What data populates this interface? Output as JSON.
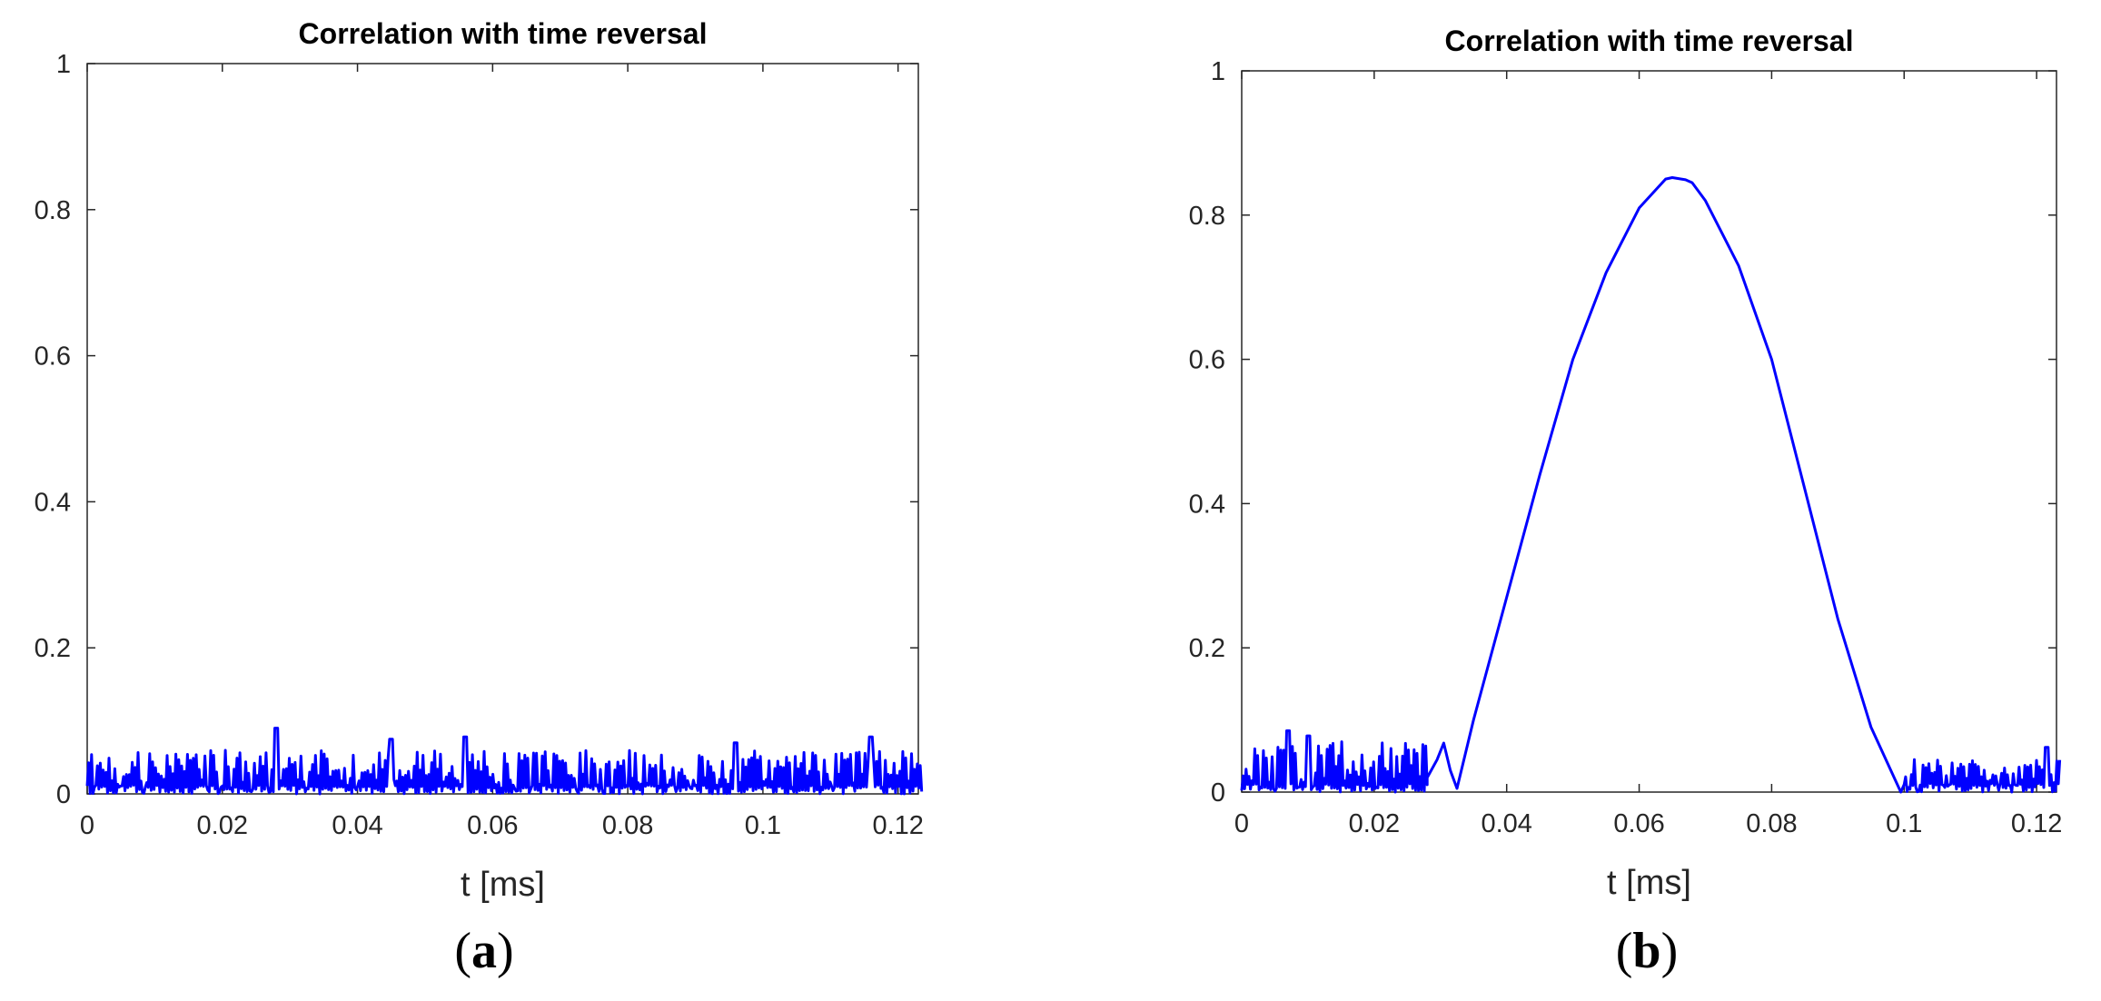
{
  "chart_data": [
    {
      "type": "line",
      "panel": "a",
      "title": "Correlation with time reversal",
      "xlabel": "t [ms]",
      "ylabel": "",
      "xlim": [
        0,
        0.123
      ],
      "ylim": [
        0,
        1
      ],
      "xticks": [
        0,
        0.02,
        0.04,
        0.06,
        0.08,
        0.1,
        0.12
      ],
      "xtick_labels": [
        "0",
        "0.02",
        "0.04",
        "0.06",
        "0.08",
        "0.1",
        "0.12"
      ],
      "yticks": [
        0,
        0.2,
        0.4,
        0.6,
        0.8,
        1
      ],
      "ytick_labels": [
        "0",
        "0.2",
        "0.4",
        "0.6",
        "0.8",
        "1"
      ],
      "grid": false,
      "color": "#0000ff",
      "series": [
        {
          "noise_band": {
            "x_range": [
              0,
              0.1235
            ],
            "y_min": 0.0,
            "y_max": 0.06,
            "peaks": [
              [
                0.028,
                0.09
              ],
              [
                0.045,
                0.075
              ],
              [
                0.056,
                0.078
              ],
              [
                0.096,
                0.07
              ],
              [
                0.116,
                0.078
              ]
            ]
          }
        }
      ],
      "panel_label": {
        "open": "(",
        "letter": "a",
        "close": ")"
      }
    },
    {
      "type": "line",
      "panel": "b",
      "title": "Correlation with time reversal",
      "xlabel": "t [ms]",
      "ylabel": "",
      "xlim": [
        0,
        0.123
      ],
      "ylim": [
        0,
        1
      ],
      "xticks": [
        0,
        0.02,
        0.04,
        0.06,
        0.08,
        0.1,
        0.12
      ],
      "xtick_labels": [
        "0",
        "0.02",
        "0.04",
        "0.06",
        "0.08",
        "0.1",
        "0.12"
      ],
      "yticks": [
        0,
        0.2,
        0.4,
        0.6,
        0.8,
        1
      ],
      "ytick_labels": [
        "0",
        "0.2",
        "0.4",
        "0.6",
        "0.8",
        "1"
      ],
      "grid": false,
      "color": "#0000ff",
      "series": [
        {
          "noise_band_1": {
            "x_range": [
              0,
              0.028
            ],
            "y_min": 0.0,
            "y_max": 0.07,
            "peaks": [
              [
                0.007,
                0.085
              ],
              [
                0.01,
                0.078
              ]
            ]
          },
          "x": [
            0.028,
            0.0295,
            0.0305,
            0.0315,
            0.0325,
            0.035,
            0.04,
            0.045,
            0.05,
            0.055,
            0.06,
            0.064,
            0.065,
            0.067,
            0.068,
            0.07,
            0.075,
            0.08,
            0.085,
            0.09,
            0.095,
            0.0995
          ],
          "y": [
            0.02,
            0.045,
            0.068,
            0.03,
            0.005,
            0.1,
            0.27,
            0.44,
            0.6,
            0.72,
            0.81,
            0.85,
            0.852,
            0.849,
            0.845,
            0.82,
            0.73,
            0.6,
            0.42,
            0.24,
            0.09,
            0.0
          ],
          "noise_band_2": {
            "x_range": [
              0.1,
              0.1235
            ],
            "y_min": 0.0,
            "y_max": 0.045,
            "peaks": [
              [
                0.1215,
                0.062
              ]
            ]
          }
        }
      ],
      "panel_label": {
        "open": "(",
        "letter": "b",
        "close": ")"
      }
    }
  ]
}
